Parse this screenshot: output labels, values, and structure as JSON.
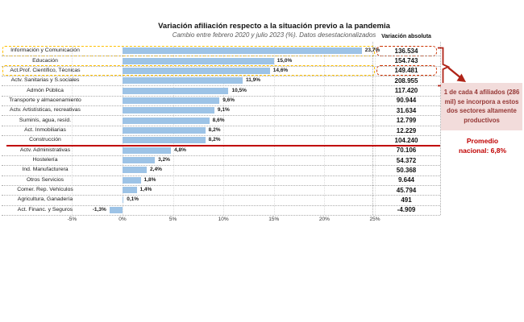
{
  "chart_data": {
    "type": "bar",
    "orientation": "horizontal",
    "title": "Variación afiliación respecto a la situación previo a la pandemia",
    "subtitle": "Cambio entre febrero 2020 y julio 2023 (%). Datos desestacionalizados",
    "abs_column_header": "Variación absoluta",
    "xlabel": "",
    "x_range": [
      -5,
      25
    ],
    "grid": true,
    "x_ticks": [
      {
        "value": -5,
        "label": "-5%"
      },
      {
        "value": 0,
        "label": "0%"
      },
      {
        "value": 5,
        "label": "5%"
      },
      {
        "value": 10,
        "label": "10%"
      },
      {
        "value": 15,
        "label": "15%"
      },
      {
        "value": 20,
        "label": "20%"
      },
      {
        "value": 25,
        "label": "25%"
      }
    ],
    "rows": [
      {
        "label": "Información y Comunicación",
        "pct": 23.7,
        "pct_label": "23,7%",
        "abs": "136.534",
        "highlighted": true
      },
      {
        "label": "Educación",
        "pct": 15.0,
        "pct_label": "15,0%",
        "abs": "154.743",
        "highlighted": false
      },
      {
        "label": "Act.Prof. Científico, Técnicas",
        "pct": 14.6,
        "pct_label": "14,6%",
        "abs": "149.481",
        "highlighted": true
      },
      {
        "label": "Actv. Sanitarias y S.sociales",
        "pct": 11.9,
        "pct_label": "11,9%",
        "abs": "208.955",
        "highlighted": false
      },
      {
        "label": "Admón Pública",
        "pct": 10.5,
        "pct_label": "10,5%",
        "abs": "117.420",
        "highlighted": false
      },
      {
        "label": "Transporte y almacenamiento",
        "pct": 9.6,
        "pct_label": "9,6%",
        "abs": "90.944",
        "highlighted": false
      },
      {
        "label": "Actv. Artistísticas, recreativas",
        "pct": 9.1,
        "pct_label": "9,1%",
        "abs": "31.634",
        "highlighted": false
      },
      {
        "label": "Suminís, agua, resíd.",
        "pct": 8.6,
        "pct_label": "8,6%",
        "abs": "12.799",
        "highlighted": false
      },
      {
        "label": "Act. Inmobiliarias",
        "pct": 8.2,
        "pct_label": "8,2%",
        "abs": "12.229",
        "highlighted": false
      },
      {
        "label": "Construcción",
        "pct": 8.2,
        "pct_label": "8,2%",
        "abs": "104.240",
        "highlighted": false,
        "average_line_below": true
      },
      {
        "label": "Actv. Administrativas",
        "pct": 4.8,
        "pct_label": "4,8%",
        "abs": "70.106",
        "highlighted": false
      },
      {
        "label": "Hostelería",
        "pct": 3.2,
        "pct_label": "3,2%",
        "abs": "54.372",
        "highlighted": false
      },
      {
        "label": "Ind. Manufacturera",
        "pct": 2.4,
        "pct_label": "2,4%",
        "abs": "50.368",
        "highlighted": false
      },
      {
        "label": "Otros Servicios",
        "pct": 1.8,
        "pct_label": "1,8%",
        "abs": "9.644",
        "highlighted": false
      },
      {
        "label": "Comer. Rep. Vehículos",
        "pct": 1.4,
        "pct_label": "1,4%",
        "abs": "45.794",
        "highlighted": false
      },
      {
        "label": "Agricultura, Ganadería",
        "pct": 0.1,
        "pct_label": "0,1%",
        "abs": "491",
        "highlighted": false
      },
      {
        "label": "Act. Financ. y Seguros",
        "pct": -1.3,
        "pct_label": "-1,3%",
        "abs": "-4.909",
        "highlighted": false
      }
    ]
  },
  "annotation": {
    "box_text": "1 de cada 4 afiliados (286 mil) se incorpora a estos dos sectores altamente productivos",
    "promedio_line1": "Promedio",
    "promedio_line2": "nacional: 6,8%"
  },
  "colors": {
    "bar": "#9DC3E6",
    "highlight_yellow": "#FFC000",
    "highlight_red": "#CC3300",
    "average_line": "#C00000",
    "annotation_bg": "#F2DCDB",
    "annotation_text": "#953735",
    "promedio_text": "#C00000"
  }
}
